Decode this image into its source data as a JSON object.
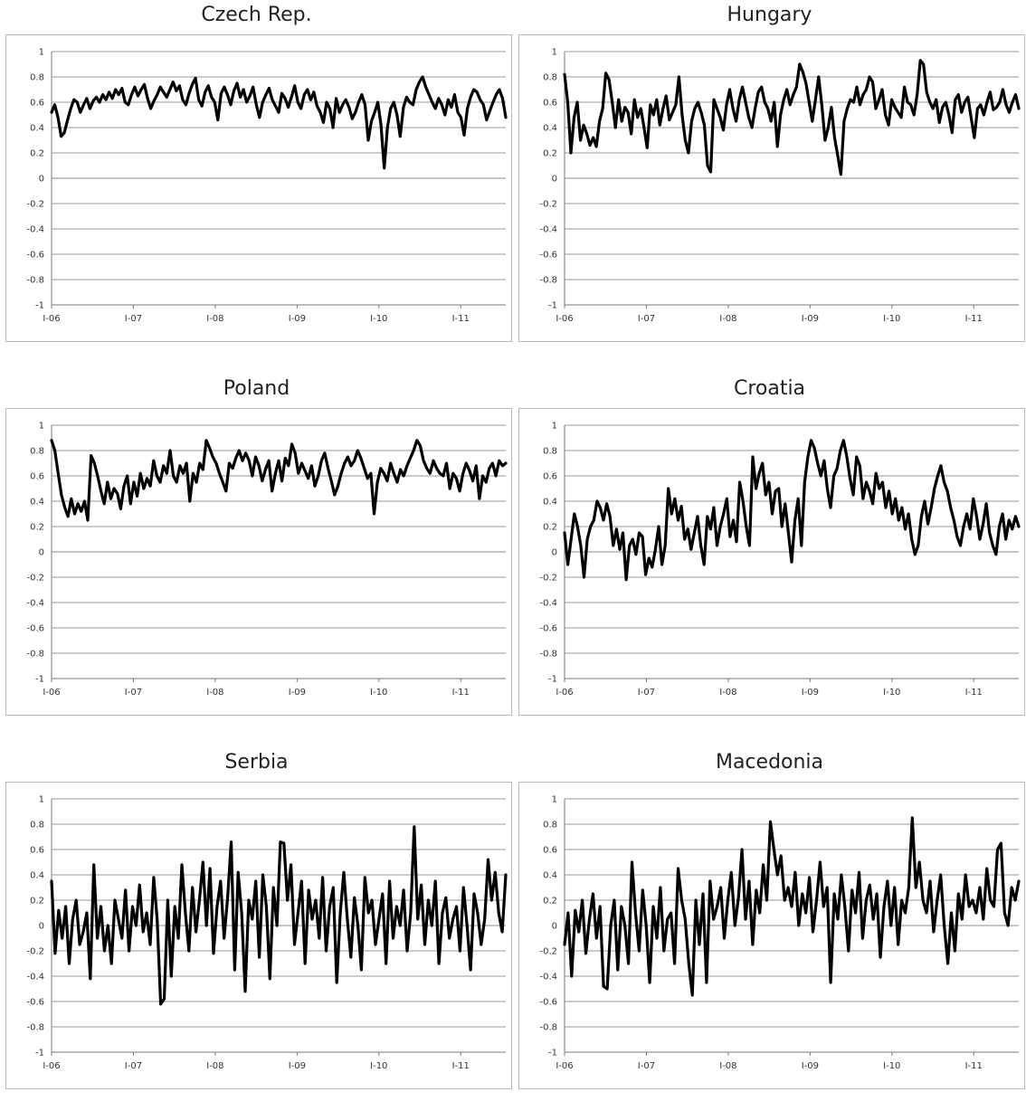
{
  "chart_data": [
    {
      "type": "line",
      "title": "Czech Rep.",
      "ylim": [
        -1,
        1
      ],
      "y_ticks": [
        "1",
        "0.8",
        "0.6",
        "0.4",
        "0.2",
        "0",
        "-0.2",
        "-0.4",
        "-0.6",
        "-0.8",
        "-1"
      ],
      "x_ticks": [
        "I-06",
        "I-07",
        "I-08",
        "I-09",
        "I-10",
        "I-11"
      ],
      "x_range": [
        0,
        5.55
      ],
      "grid": "horizontal",
      "line_color": "#000000",
      "series": [
        {
          "values": [
            0.52,
            0.58,
            0.48,
            0.33,
            0.36,
            0.46,
            0.55,
            0.62,
            0.6,
            0.52,
            0.58,
            0.63,
            0.55,
            0.61,
            0.64,
            0.6,
            0.66,
            0.62,
            0.68,
            0.63,
            0.7,
            0.66,
            0.71,
            0.6,
            0.58,
            0.66,
            0.72,
            0.65,
            0.7,
            0.74,
            0.63,
            0.55,
            0.61,
            0.66,
            0.72,
            0.68,
            0.64,
            0.7,
            0.76,
            0.69,
            0.73,
            0.62,
            0.58,
            0.67,
            0.74,
            0.79,
            0.62,
            0.57,
            0.68,
            0.73,
            0.64,
            0.6,
            0.46,
            0.67,
            0.72,
            0.66,
            0.58,
            0.69,
            0.75,
            0.64,
            0.7,
            0.6,
            0.65,
            0.72,
            0.58,
            0.48,
            0.6,
            0.66,
            0.71,
            0.62,
            0.57,
            0.52,
            0.67,
            0.63,
            0.56,
            0.64,
            0.73,
            0.6,
            0.55,
            0.66,
            0.7,
            0.62,
            0.68,
            0.57,
            0.52,
            0.44,
            0.6,
            0.55,
            0.4,
            0.63,
            0.52,
            0.58,
            0.62,
            0.56,
            0.47,
            0.52,
            0.6,
            0.66,
            0.58,
            0.3,
            0.45,
            0.52,
            0.6,
            0.42,
            0.08,
            0.4,
            0.55,
            0.6,
            0.5,
            0.33,
            0.56,
            0.64,
            0.6,
            0.58,
            0.7,
            0.76,
            0.8,
            0.72,
            0.66,
            0.6,
            0.55,
            0.63,
            0.58,
            0.5,
            0.62,
            0.56,
            0.66,
            0.52,
            0.48,
            0.34,
            0.55,
            0.64,
            0.7,
            0.68,
            0.62,
            0.58,
            0.46,
            0.53,
            0.6,
            0.66,
            0.7,
            0.63,
            0.48
          ]
        }
      ]
    },
    {
      "type": "line",
      "title": "Hungary",
      "ylim": [
        -1,
        1
      ],
      "y_ticks": [
        "1",
        "0.8",
        "0.6",
        "0.4",
        "0.2",
        "0",
        "-0.2",
        "-0.4",
        "-0.6",
        "-0.8",
        "-1"
      ],
      "x_ticks": [
        "I-06",
        "I-07",
        "I-08",
        "I-09",
        "I-10",
        "I-11"
      ],
      "x_range": [
        0,
        5.55
      ],
      "grid": "horizontal",
      "line_color": "#000000",
      "series": [
        {
          "values": [
            0.82,
            0.6,
            0.2,
            0.48,
            0.6,
            0.3,
            0.42,
            0.35,
            0.26,
            0.32,
            0.25,
            0.45,
            0.55,
            0.83,
            0.78,
            0.6,
            0.4,
            0.62,
            0.45,
            0.56,
            0.52,
            0.35,
            0.62,
            0.48,
            0.55,
            0.4,
            0.24,
            0.58,
            0.5,
            0.62,
            0.42,
            0.55,
            0.65,
            0.46,
            0.52,
            0.58,
            0.8,
            0.5,
            0.3,
            0.2,
            0.45,
            0.55,
            0.6,
            0.52,
            0.42,
            0.1,
            0.05,
            0.62,
            0.55,
            0.48,
            0.38,
            0.58,
            0.7,
            0.55,
            0.45,
            0.62,
            0.72,
            0.6,
            0.48,
            0.4,
            0.55,
            0.68,
            0.72,
            0.6,
            0.55,
            0.45,
            0.6,
            0.25,
            0.5,
            0.62,
            0.7,
            0.58,
            0.66,
            0.72,
            0.9,
            0.84,
            0.75,
            0.6,
            0.45,
            0.62,
            0.8,
            0.58,
            0.3,
            0.4,
            0.56,
            0.32,
            0.18,
            0.03,
            0.45,
            0.55,
            0.62,
            0.6,
            0.72,
            0.58,
            0.66,
            0.7,
            0.8,
            0.76,
            0.55,
            0.62,
            0.7,
            0.5,
            0.42,
            0.62,
            0.56,
            0.52,
            0.48,
            0.72,
            0.6,
            0.58,
            0.5,
            0.66,
            0.93,
            0.9,
            0.68,
            0.6,
            0.55,
            0.62,
            0.44,
            0.56,
            0.6,
            0.5,
            0.36,
            0.62,
            0.66,
            0.52,
            0.6,
            0.64,
            0.48,
            0.32,
            0.55,
            0.58,
            0.5,
            0.6,
            0.68,
            0.54,
            0.56,
            0.6,
            0.7,
            0.58,
            0.52,
            0.6,
            0.66,
            0.55
          ]
        }
      ]
    },
    {
      "type": "line",
      "title": "Poland",
      "ylim": [
        -1,
        1
      ],
      "y_ticks": [
        "1",
        "0.8",
        "0.6",
        "0.4",
        "0.2",
        "0",
        "-0.2",
        "-0.4",
        "-0.6",
        "-0.8",
        "-1"
      ],
      "x_ticks": [
        "I-06",
        "I-07",
        "I-08",
        "I-09",
        "I-10",
        "I-11"
      ],
      "x_range": [
        0,
        5.55
      ],
      "grid": "horizontal",
      "line_color": "#000000",
      "series": [
        {
          "values": [
            0.88,
            0.8,
            0.62,
            0.45,
            0.35,
            0.28,
            0.42,
            0.3,
            0.38,
            0.32,
            0.4,
            0.25,
            0.76,
            0.7,
            0.6,
            0.48,
            0.38,
            0.55,
            0.42,
            0.5,
            0.46,
            0.34,
            0.52,
            0.6,
            0.38,
            0.55,
            0.44,
            0.62,
            0.5,
            0.58,
            0.52,
            0.72,
            0.6,
            0.55,
            0.68,
            0.62,
            0.8,
            0.6,
            0.55,
            0.68,
            0.62,
            0.7,
            0.4,
            0.62,
            0.55,
            0.7,
            0.65,
            0.88,
            0.82,
            0.75,
            0.7,
            0.62,
            0.55,
            0.48,
            0.7,
            0.66,
            0.74,
            0.8,
            0.72,
            0.78,
            0.72,
            0.6,
            0.75,
            0.68,
            0.56,
            0.65,
            0.72,
            0.48,
            0.62,
            0.72,
            0.56,
            0.74,
            0.68,
            0.85,
            0.78,
            0.62,
            0.7,
            0.64,
            0.58,
            0.68,
            0.52,
            0.6,
            0.72,
            0.78,
            0.66,
            0.56,
            0.45,
            0.52,
            0.62,
            0.7,
            0.75,
            0.68,
            0.72,
            0.8,
            0.74,
            0.66,
            0.58,
            0.62,
            0.3,
            0.55,
            0.66,
            0.62,
            0.56,
            0.7,
            0.62,
            0.55,
            0.65,
            0.6,
            0.68,
            0.74,
            0.8,
            0.88,
            0.84,
            0.72,
            0.66,
            0.62,
            0.72,
            0.66,
            0.62,
            0.6,
            0.7,
            0.5,
            0.62,
            0.58,
            0.48,
            0.62,
            0.7,
            0.64,
            0.56,
            0.68,
            0.42,
            0.6,
            0.55,
            0.66,
            0.7,
            0.6,
            0.72,
            0.68,
            0.7
          ]
        }
      ]
    },
    {
      "type": "line",
      "title": "Croatia",
      "ylim": [
        -1,
        1
      ],
      "y_ticks": [
        "1",
        "0.8",
        "0.6",
        "0.4",
        "0.2",
        "0",
        "-0.2",
        "-0.4",
        "-0.6",
        "-0.8",
        "-1"
      ],
      "x_ticks": [
        "I-06",
        "I-07",
        "I-08",
        "I-09",
        "I-10",
        "I-11"
      ],
      "x_range": [
        0,
        5.55
      ],
      "grid": "horizontal",
      "line_color": "#000000",
      "series": [
        {
          "values": [
            0.15,
            -0.1,
            0.1,
            0.3,
            0.2,
            0.05,
            -0.2,
            0.1,
            0.2,
            0.25,
            0.4,
            0.35,
            0.25,
            0.38,
            0.28,
            0.05,
            0.18,
            0.02,
            0.15,
            -0.22,
            0.05,
            0.1,
            -0.02,
            0.15,
            0.12,
            -0.18,
            -0.05,
            -0.12,
            0.02,
            0.2,
            -0.1,
            0.05,
            0.5,
            0.3,
            0.42,
            0.25,
            0.36,
            0.1,
            0.18,
            0.02,
            0.15,
            0.28,
            0.05,
            -0.1,
            0.28,
            0.18,
            0.35,
            0.05,
            0.2,
            0.3,
            0.42,
            0.12,
            0.25,
            0.08,
            0.55,
            0.4,
            0.2,
            0.05,
            0.75,
            0.5,
            0.62,
            0.7,
            0.45,
            0.55,
            0.3,
            0.48,
            0.5,
            0.2,
            0.38,
            0.15,
            -0.08,
            0.25,
            0.42,
            0.05,
            0.55,
            0.75,
            0.88,
            0.82,
            0.7,
            0.6,
            0.72,
            0.5,
            0.35,
            0.6,
            0.66,
            0.8,
            0.88,
            0.75,
            0.58,
            0.45,
            0.75,
            0.68,
            0.42,
            0.55,
            0.48,
            0.38,
            0.62,
            0.5,
            0.55,
            0.35,
            0.48,
            0.3,
            0.42,
            0.25,
            0.35,
            0.18,
            0.3,
            0.1,
            -0.02,
            0.05,
            0.28,
            0.4,
            0.22,
            0.35,
            0.5,
            0.6,
            0.68,
            0.55,
            0.48,
            0.35,
            0.25,
            0.12,
            0.05,
            0.2,
            0.3,
            0.18,
            0.42,
            0.28,
            0.1,
            0.22,
            0.38,
            0.15,
            0.05,
            -0.02,
            0.2,
            0.3,
            0.1,
            0.25,
            0.18,
            0.28,
            0.2
          ]
        }
      ]
    },
    {
      "type": "line",
      "title": "Serbia",
      "ylim": [
        -1,
        1
      ],
      "y_ticks": [
        "1",
        "0.8",
        "0.6",
        "0.4",
        "0.2",
        "0",
        "-0.2",
        "-0.4",
        "-0.6",
        "-0.8",
        "-1"
      ],
      "x_ticks": [
        "I-06",
        "I-07",
        "I-08",
        "I-09",
        "I-10",
        "I-11"
      ],
      "x_range": [
        0,
        5.55
      ],
      "grid": "horizontal",
      "line_color": "#000000",
      "series": [
        {
          "values": [
            0.35,
            -0.22,
            0.12,
            -0.1,
            0.15,
            -0.3,
            0.05,
            0.2,
            -0.15,
            -0.05,
            0.1,
            -0.42,
            0.48,
            -0.1,
            0.15,
            -0.2,
            0.0,
            -0.3,
            0.2,
            0.05,
            -0.1,
            0.28,
            -0.2,
            0.15,
            0.0,
            0.32,
            -0.05,
            0.1,
            -0.15,
            0.38,
            0.05,
            -0.62,
            -0.58,
            0.2,
            -0.4,
            0.15,
            -0.1,
            0.48,
            0.1,
            -0.2,
            0.3,
            -0.05,
            0.2,
            0.5,
            0.0,
            0.45,
            -0.22,
            0.15,
            0.35,
            -0.1,
            0.22,
            0.66,
            -0.35,
            0.42,
            0.1,
            -0.52,
            0.2,
            0.05,
            0.35,
            -0.25,
            0.4,
            0.15,
            -0.42,
            0.3,
            0.0,
            0.66,
            0.65,
            0.2,
            0.48,
            -0.15,
            0.1,
            0.35,
            -0.3,
            0.28,
            0.05,
            0.2,
            -0.1,
            0.38,
            -0.2,
            0.15,
            0.3,
            -0.45,
            0.1,
            0.42,
            0.05,
            -0.25,
            0.22,
            0.0,
            -0.35,
            0.38,
            0.1,
            0.2,
            -0.15,
            0.05,
            0.25,
            -0.3,
            0.35,
            -0.1,
            0.15,
            0.0,
            0.28,
            -0.2,
            0.1,
            0.78,
            0.05,
            0.32,
            -0.15,
            0.2,
            0.0,
            0.35,
            -0.3,
            0.1,
            0.22,
            -0.1,
            0.05,
            0.15,
            -0.2,
            0.3,
            0.0,
            -0.35,
            0.25,
            0.1,
            -0.15,
            0.05,
            0.52,
            0.2,
            0.42,
            0.1,
            -0.05,
            0.4
          ]
        }
      ]
    },
    {
      "type": "line",
      "title": "Macedonia",
      "ylim": [
        -1,
        1
      ],
      "y_ticks": [
        "1",
        "0.8",
        "0.6",
        "0.4",
        "0.2",
        "0",
        "-0.2",
        "-0.4",
        "-0.6",
        "-0.8",
        "-1"
      ],
      "x_ticks": [
        "I-06",
        "I-07",
        "I-08",
        "I-09",
        "I-10",
        "I-11"
      ],
      "x_range": [
        0,
        5.55
      ],
      "grid": "horizontal",
      "line_color": "#000000",
      "series": [
        {
          "values": [
            -0.15,
            0.1,
            -0.4,
            0.12,
            -0.05,
            0.2,
            -0.22,
            0.05,
            0.25,
            -0.1,
            0.15,
            -0.48,
            -0.5,
            0.0,
            0.2,
            -0.35,
            0.15,
            0.0,
            -0.3,
            0.5,
            0.1,
            -0.2,
            0.28,
            0.0,
            -0.45,
            0.15,
            -0.1,
            0.3,
            -0.2,
            0.05,
            0.1,
            -0.3,
            0.45,
            0.2,
            0.05,
            -0.3,
            -0.55,
            0.2,
            -0.15,
            0.25,
            -0.45,
            0.35,
            0.05,
            0.15,
            0.3,
            -0.1,
            0.2,
            0.42,
            0.0,
            0.22,
            0.6,
            0.05,
            0.35,
            -0.15,
            0.28,
            0.1,
            0.48,
            0.2,
            0.82,
            0.6,
            0.4,
            0.55,
            0.2,
            0.3,
            0.15,
            0.42,
            0.0,
            0.25,
            0.1,
            0.38,
            -0.05,
            0.2,
            0.5,
            0.15,
            0.3,
            -0.45,
            0.25,
            0.05,
            0.4,
            0.15,
            -0.2,
            0.28,
            0.1,
            0.42,
            -0.1,
            0.2,
            0.32,
            0.05,
            0.25,
            -0.25,
            0.15,
            0.35,
            0.0,
            0.3,
            -0.15,
            0.2,
            0.1,
            0.3,
            0.85,
            0.3,
            0.5,
            0.2,
            0.1,
            0.35,
            -0.05,
            0.2,
            0.4,
            0.0,
            -0.3,
            0.1,
            -0.2,
            0.25,
            0.05,
            0.4,
            0.15,
            0.2,
            0.1,
            0.3,
            0.05,
            0.45,
            0.2,
            0.15,
            0.6,
            0.65,
            0.1,
            0.0,
            0.3,
            0.2,
            0.35
          ]
        }
      ]
    }
  ]
}
